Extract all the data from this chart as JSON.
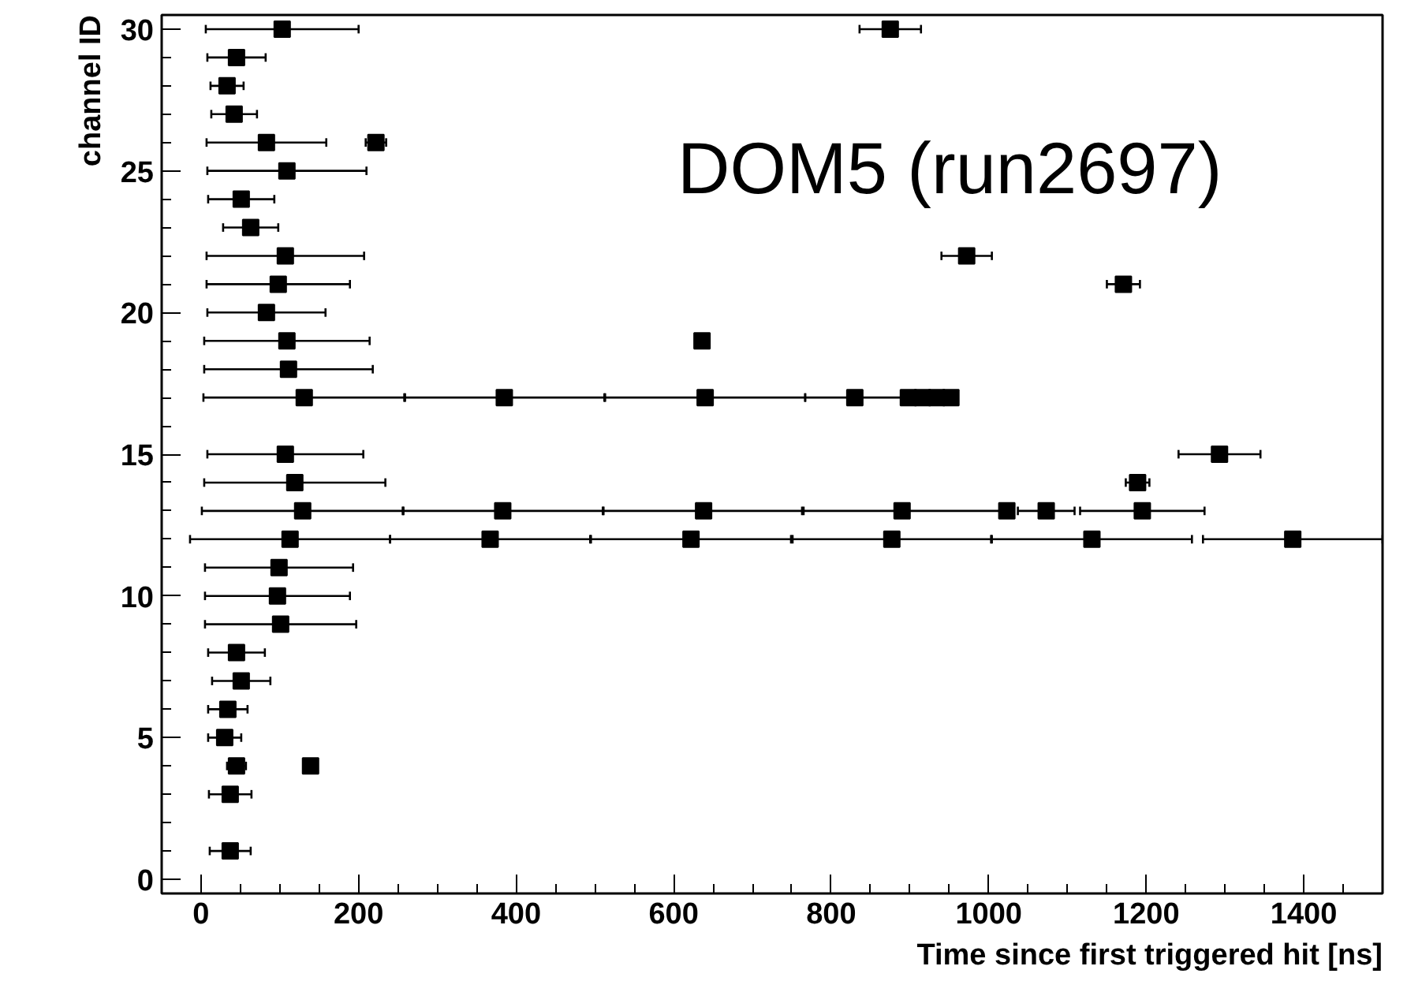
{
  "chart_data": {
    "type": "scatter",
    "xlabel": "Time since first triggered hit [ns]",
    "ylabel": "channel ID",
    "annotations": [
      "DOM5 (run2697)"
    ],
    "xlim": [
      -50,
      1500
    ],
    "ylim": [
      -0.5,
      30.5
    ],
    "xticks": [
      0,
      200,
      400,
      600,
      800,
      1000,
      1200,
      1400
    ],
    "yticks": [
      0,
      5,
      10,
      15,
      20,
      25,
      30
    ],
    "grid": false,
    "legend": false,
    "marker": "square",
    "series": [
      {
        "color": "#000000",
        "x": [
          103,
          875,
          45,
          33,
          42,
          83,
          222,
          109,
          51,
          63,
          107,
          972,
          98,
          1171,
          83,
          109,
          636,
          111,
          131,
          385,
          640,
          830,
          898,
          916,
          934,
          952,
          107,
          1293,
          119,
          1189,
          129,
          383,
          638,
          890,
          1023,
          1073,
          1195,
          113,
          367,
          622,
          877,
          1131,
          1386,
          99,
          97,
          101,
          45,
          51,
          34,
          30,
          45,
          139,
          37,
          37
        ],
        "values": [
          30,
          30,
          29,
          28,
          27,
          26,
          26,
          25,
          24,
          23,
          22,
          22,
          21,
          21,
          20,
          19,
          19,
          18,
          17,
          17,
          17,
          17,
          17,
          17,
          17,
          17,
          15,
          15,
          14,
          14,
          13,
          13,
          13,
          13,
          13,
          13,
          13,
          12,
          12,
          12,
          12,
          12,
          12,
          11,
          10,
          9,
          8,
          7,
          6,
          5,
          4,
          4,
          3,
          1
        ],
        "xerrors": [
          97,
          39,
          37,
          21,
          29,
          76,
          13,
          101,
          42,
          35,
          100,
          32,
          91,
          21,
          75,
          105,
          null,
          107,
          128,
          127,
          127,
          63,
          null,
          null,
          null,
          null,
          99,
          52,
          115,
          15,
          128,
          127,
          127,
          127,
          null,
          36,
          79,
          127,
          127,
          127,
          126,
          127,
          114,
          94,
          92,
          96,
          36,
          37,
          25,
          21,
          12,
          null,
          27,
          26
        ]
      }
    ]
  }
}
